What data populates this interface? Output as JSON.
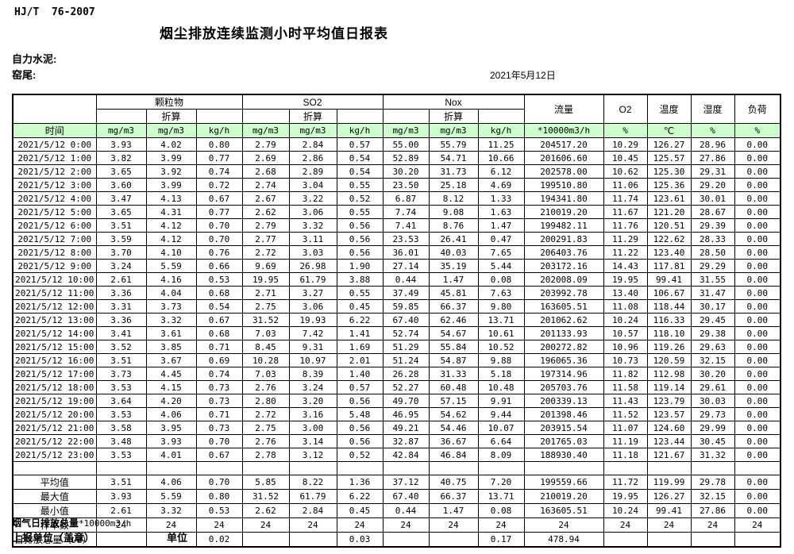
{
  "page": {
    "standard": "HJ/T  76-2007",
    "title": "烟尘排放连续监测小时平均值日报表",
    "company": "自力水泥:",
    "station": "窑尾:",
    "date": "2021年5月12日",
    "footer_total_label": "烟气日排放总量",
    "footer_total_unit": "*10000m3/h",
    "footer_report_unit": "上报单位（盖章）",
    "footer_unit": "单位"
  },
  "colors": {
    "header_green": "#ccffcc",
    "border": "#000000",
    "background": "#ffffff"
  },
  "table": {
    "header": {
      "time_label": "时间",
      "pm_label": "颗粒物",
      "so2_label": "SO2",
      "nox_label": "Nox",
      "converted_label": "折算",
      "flow_label": "流量",
      "o2_label": "O2",
      "temp_label": "温度",
      "humidity_label": "湿度",
      "load_label": "负荷",
      "units": [
        "mg/m3",
        "mg/m3",
        "kg/h",
        "mg/m3",
        "mg/m3",
        "kg/h",
        "mg/m3",
        "mg/m3",
        "kg/h",
        "*10000m3/h",
        "%",
        "℃",
        "%",
        "%"
      ]
    },
    "rows": [
      {
        "time": "2021/5/12 0:00",
        "values": [
          "3.93",
          "4.02",
          "0.80",
          "2.79",
          "2.84",
          "0.57",
          "55.00",
          "55.79",
          "11.25",
          "204517.20",
          "10.29",
          "126.27",
          "28.96",
          "0.00"
        ]
      },
      {
        "time": "2021/5/12 1:00",
        "values": [
          "3.82",
          "3.99",
          "0.77",
          "2.69",
          "2.86",
          "0.54",
          "52.89",
          "54.71",
          "10.66",
          "201606.60",
          "10.45",
          "125.57",
          "27.86",
          "0.00"
        ]
      },
      {
        "time": "2021/5/12 2:00",
        "values": [
          "3.65",
          "3.92",
          "0.74",
          "2.68",
          "2.89",
          "0.54",
          "30.20",
          "31.73",
          "6.12",
          "202578.00",
          "10.62",
          "125.30",
          "29.31",
          "0.00"
        ]
      },
      {
        "time": "2021/5/12 3:00",
        "values": [
          "3.60",
          "3.99",
          "0.72",
          "2.74",
          "3.04",
          "0.55",
          "23.50",
          "25.18",
          "4.69",
          "199510.80",
          "11.06",
          "125.36",
          "29.20",
          "0.00"
        ]
      },
      {
        "time": "2021/5/12 4:00",
        "values": [
          "3.47",
          "4.13",
          "0.67",
          "2.67",
          "3.22",
          "0.52",
          "6.87",
          "8.12",
          "1.33",
          "194341.80",
          "11.74",
          "123.61",
          "30.01",
          "0.00"
        ]
      },
      {
        "time": "2021/5/12 5:00",
        "values": [
          "3.65",
          "4.31",
          "0.77",
          "2.62",
          "3.06",
          "0.55",
          "7.74",
          "9.08",
          "1.63",
          "210019.20",
          "11.67",
          "121.20",
          "28.67",
          "0.00"
        ]
      },
      {
        "time": "2021/5/12 6:00",
        "values": [
          "3.51",
          "4.12",
          "0.70",
          "2.79",
          "3.32",
          "0.56",
          "7.41",
          "8.76",
          "1.47",
          "199482.11",
          "11.76",
          "120.51",
          "29.39",
          "0.00"
        ]
      },
      {
        "time": "2021/5/12 7:00",
        "values": [
          "3.59",
          "4.12",
          "0.70",
          "2.77",
          "3.11",
          "0.56",
          "23.53",
          "26.41",
          "0.47",
          "200291.83",
          "11.29",
          "122.62",
          "28.33",
          "0.00"
        ]
      },
      {
        "time": "2021/5/12 8:00",
        "values": [
          "3.70",
          "4.10",
          "0.76",
          "2.72",
          "3.03",
          "0.56",
          "36.01",
          "40.03",
          "7.65",
          "206403.76",
          "11.22",
          "123.40",
          "28.50",
          "0.00"
        ]
      },
      {
        "time": "2021/5/12 9:00",
        "values": [
          "3.24",
          "5.59",
          "0.66",
          "9.69",
          "26.98",
          "1.90",
          "27.14",
          "35.19",
          "5.44",
          "203172.16",
          "14.43",
          "117.81",
          "29.29",
          "0.00"
        ]
      },
      {
        "time": "2021/5/12 10:00",
        "values": [
          "2.61",
          "4.16",
          "0.53",
          "19.95",
          "61.79",
          "3.88",
          "0.44",
          "1.47",
          "0.08",
          "202008.09",
          "19.95",
          "99.41",
          "31.55",
          "0.00"
        ]
      },
      {
        "time": "2021/5/12 11:00",
        "values": [
          "3.36",
          "4.04",
          "0.68",
          "2.71",
          "3.27",
          "0.55",
          "37.49",
          "45.81",
          "7.63",
          "203992.78",
          "13.40",
          "106.67",
          "31.47",
          "0.00"
        ]
      },
      {
        "time": "2021/5/12 12:00",
        "values": [
          "3.31",
          "3.73",
          "0.54",
          "2.75",
          "3.06",
          "0.45",
          "59.85",
          "66.37",
          "9.80",
          "163605.51",
          "11.08",
          "118.44",
          "30.17",
          "0.00"
        ]
      },
      {
        "time": "2021/5/12 13:00",
        "values": [
          "3.36",
          "3.32",
          "0.67",
          "31.52",
          "19.93",
          "6.22",
          "67.40",
          "62.46",
          "13.71",
          "201062.62",
          "10.24",
          "116.33",
          "29.45",
          "0.00"
        ]
      },
      {
        "time": "2021/5/12 14:00",
        "values": [
          "3.41",
          "3.61",
          "0.68",
          "7.03",
          "7.42",
          "1.41",
          "52.74",
          "54.67",
          "10.61",
          "201133.93",
          "10.57",
          "118.10",
          "29.38",
          "0.00"
        ]
      },
      {
        "time": "2021/5/12 15:00",
        "values": [
          "3.52",
          "3.85",
          "0.71",
          "8.45",
          "9.31",
          "1.69",
          "51.29",
          "55.84",
          "10.52",
          "200272.82",
          "10.96",
          "119.26",
          "29.63",
          "0.00"
        ]
      },
      {
        "time": "2021/5/12 16:00",
        "values": [
          "3.51",
          "3.67",
          "0.69",
          "10.28",
          "10.97",
          "2.01",
          "51.24",
          "54.87",
          "9.88",
          "196065.36",
          "10.73",
          "120.59",
          "32.15",
          "0.00"
        ]
      },
      {
        "time": "2021/5/12 17:00",
        "values": [
          "3.73",
          "4.45",
          "0.74",
          "7.03",
          "8.39",
          "1.40",
          "26.28",
          "31.33",
          "5.18",
          "197314.96",
          "11.82",
          "112.98",
          "30.20",
          "0.00"
        ]
      },
      {
        "time": "2021/5/12 18:00",
        "values": [
          "3.53",
          "4.15",
          "0.73",
          "2.76",
          "3.24",
          "0.57",
          "52.27",
          "60.48",
          "10.48",
          "205703.76",
          "11.58",
          "119.14",
          "29.61",
          "0.00"
        ]
      },
      {
        "time": "2021/5/12 19:00",
        "values": [
          "3.64",
          "4.20",
          "0.73",
          "2.80",
          "3.20",
          "0.56",
          "49.70",
          "57.15",
          "9.91",
          "200339.13",
          "11.43",
          "123.79",
          "30.03",
          "0.00"
        ]
      },
      {
        "time": "2021/5/12 20:00",
        "values": [
          "3.53",
          "4.06",
          "0.71",
          "2.72",
          "3.16",
          "5.48",
          "46.95",
          "54.62",
          "9.44",
          "201398.46",
          "11.52",
          "123.57",
          "29.73",
          "0.00"
        ]
      },
      {
        "time": "2021/5/12 21:00",
        "values": [
          "3.58",
          "3.95",
          "0.73",
          "2.75",
          "3.00",
          "0.56",
          "49.21",
          "54.46",
          "10.07",
          "203915.54",
          "11.07",
          "124.60",
          "29.99",
          "0.00"
        ]
      },
      {
        "time": "2021/5/12 22:00",
        "values": [
          "3.48",
          "3.93",
          "0.70",
          "2.76",
          "3.14",
          "0.56",
          "32.87",
          "36.67",
          "6.64",
          "201765.03",
          "11.19",
          "123.44",
          "30.45",
          "0.00"
        ]
      },
      {
        "time": "2021/5/12 23:00",
        "values": [
          "3.53",
          "4.01",
          "0.67",
          "2.78",
          "3.12",
          "0.52",
          "42.84",
          "46.84",
          "8.09",
          "188930.40",
          "11.18",
          "121.67",
          "31.32",
          "0.00"
        ]
      }
    ],
    "summary": [
      {
        "label": "平均值",
        "align": "center",
        "values": [
          "3.51",
          "4.06",
          "0.70",
          "5.85",
          "8.22",
          "1.36",
          "37.12",
          "40.75",
          "7.20",
          "199559.66",
          "11.72",
          "119.99",
          "29.78",
          "0.00"
        ]
      },
      {
        "label": "最大值",
        "align": "center",
        "values": [
          "3.93",
          "5.59",
          "0.80",
          "31.52",
          "61.79",
          "6.22",
          "67.40",
          "66.37",
          "13.71",
          "210019.20",
          "19.95",
          "126.27",
          "32.15",
          "0.00"
        ]
      },
      {
        "label": "最小值",
        "align": "center",
        "values": [
          "2.61",
          "3.32",
          "0.53",
          "2.62",
          "2.84",
          "0.45",
          "0.44",
          "1.47",
          "0.08",
          "163605.51",
          "10.24",
          "99.41",
          "27.86",
          "0.00"
        ]
      },
      {
        "label": "样本数",
        "align": "center",
        "values": [
          "24",
          "24",
          "24",
          "24",
          "24",
          "24",
          "24",
          "24",
          "24",
          "24",
          "24",
          "24",
          "24",
          "24"
        ]
      },
      {
        "label": "日排放总量（t/d）",
        "align": "left",
        "values": [
          "",
          "",
          "0.02",
          "",
          "",
          "0.03",
          "",
          "",
          "0.17",
          "478.94",
          "",
          "",
          "",
          ""
        ]
      }
    ]
  }
}
